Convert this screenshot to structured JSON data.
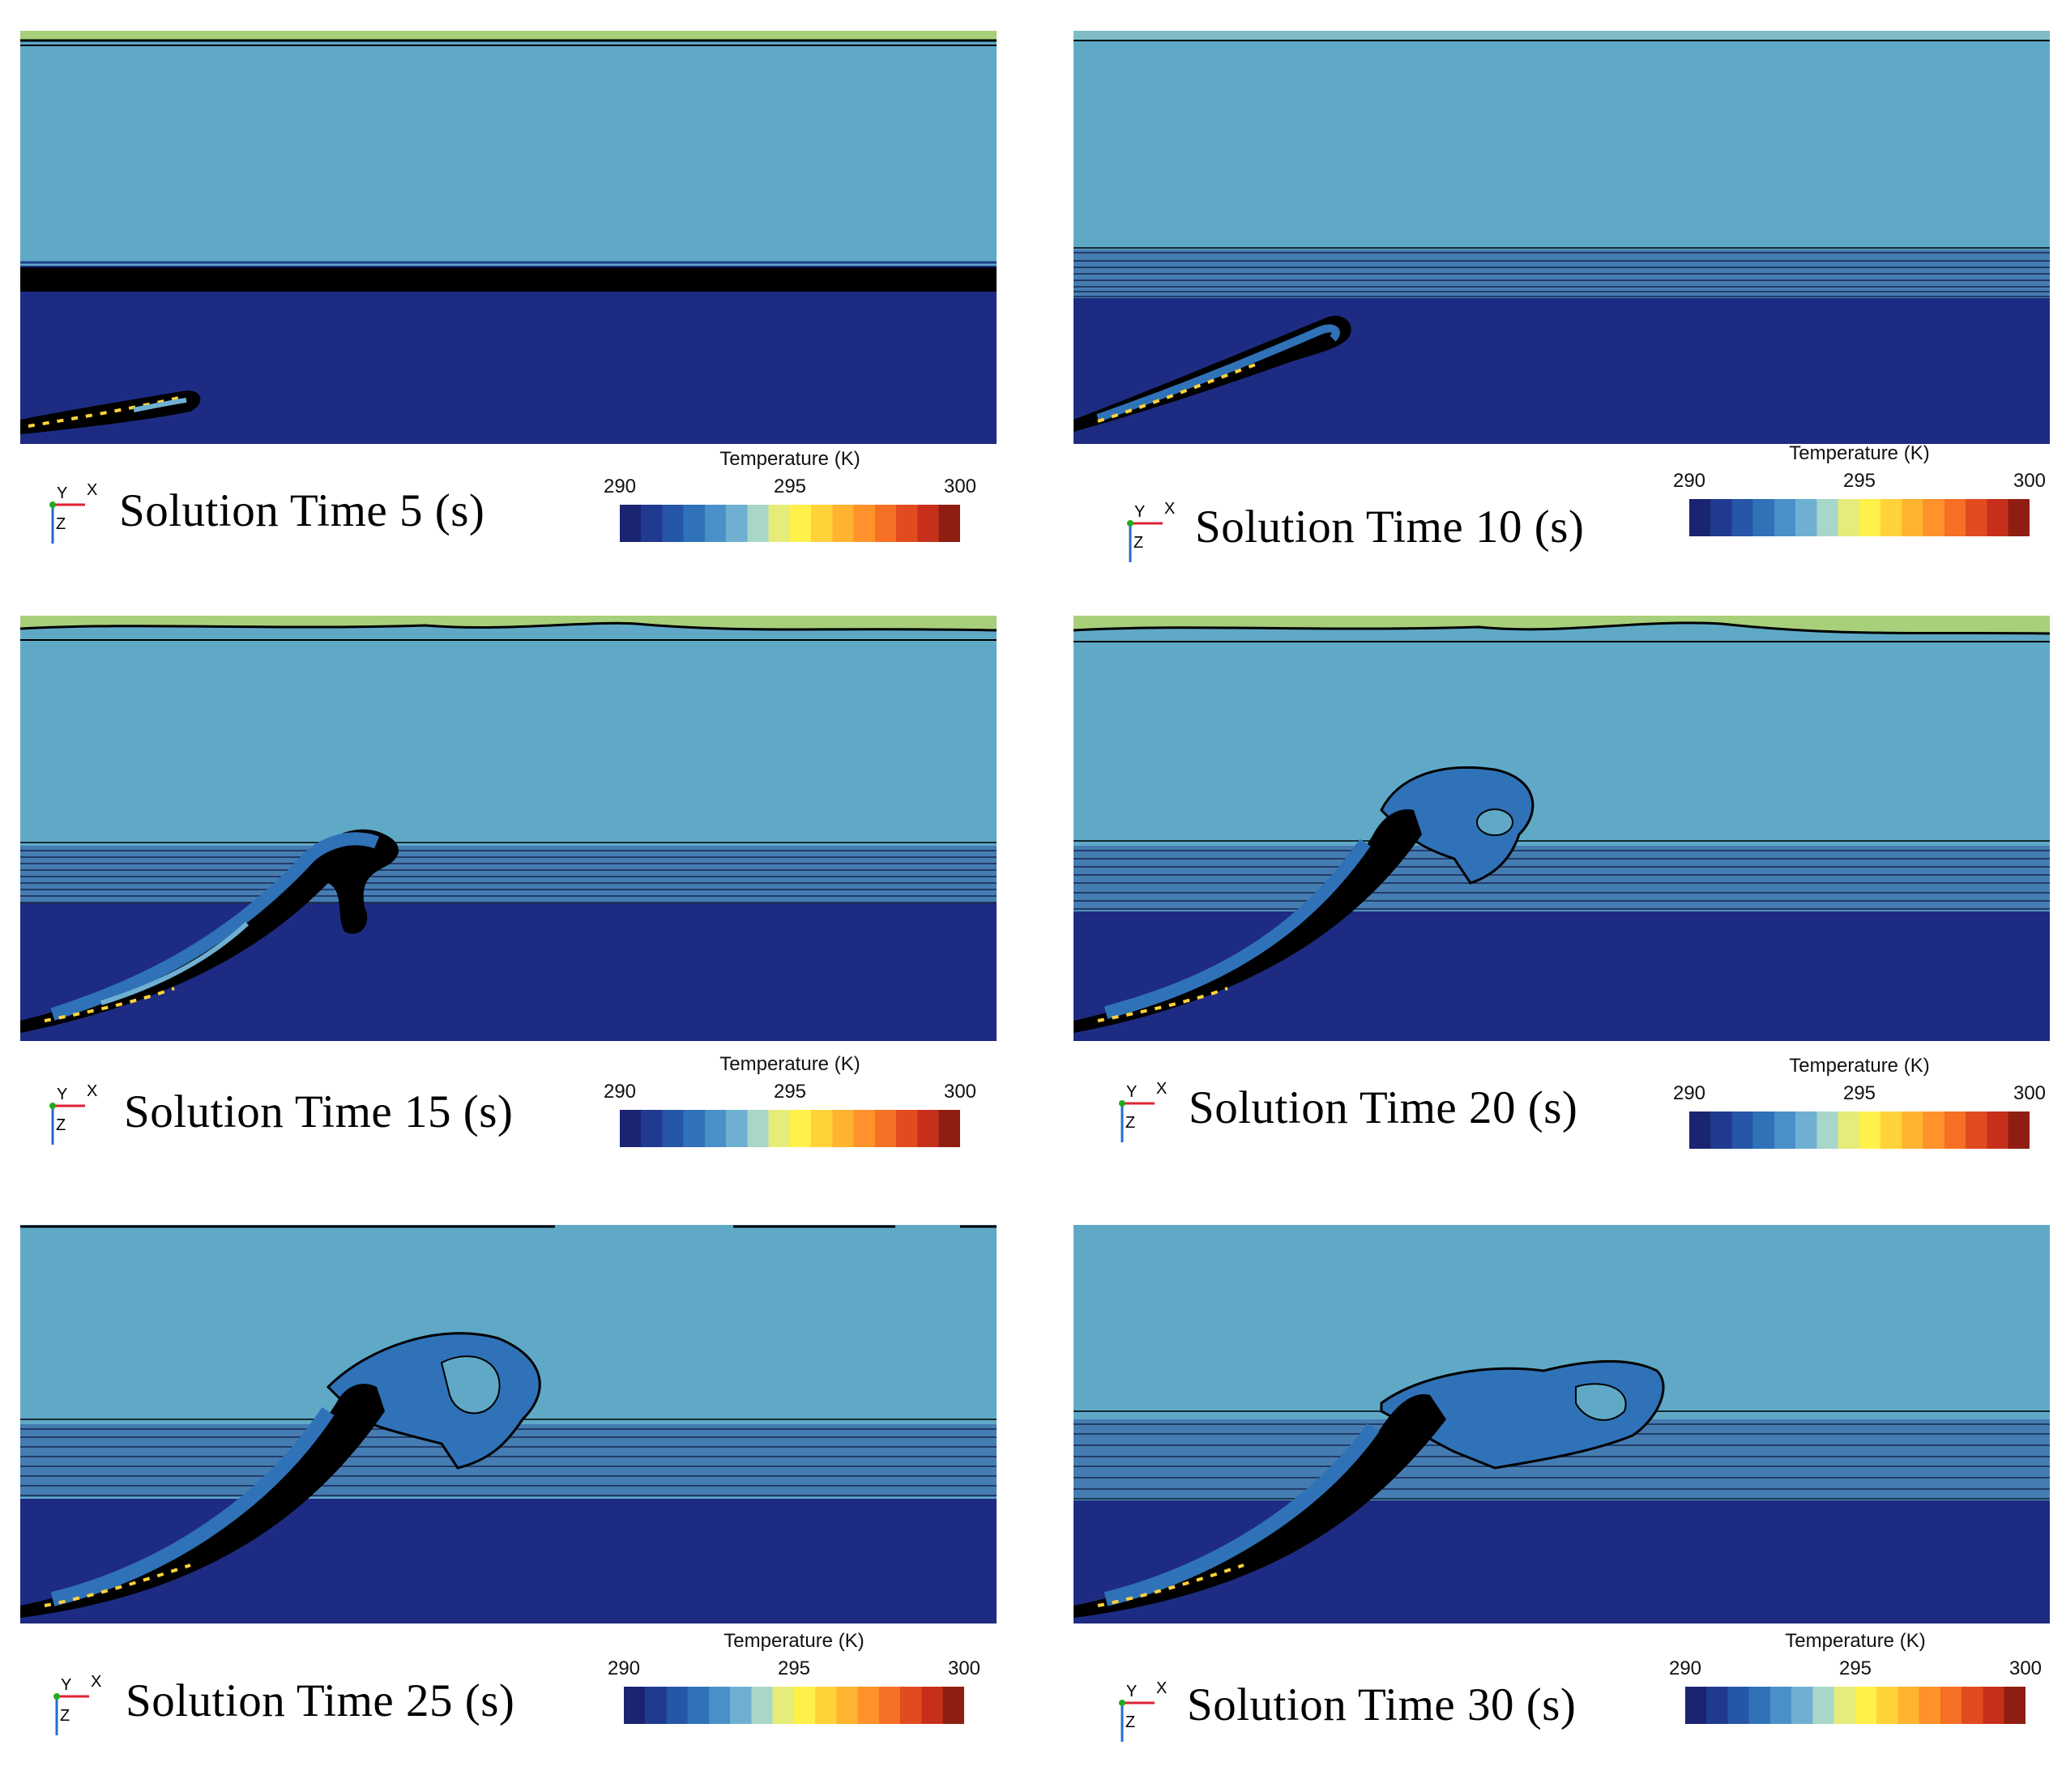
{
  "legend": {
    "title": "Temperature (K)",
    "min_label": "290",
    "mid_label": "295",
    "max_label": "300",
    "range_k": [
      290,
      300
    ],
    "colormap": [
      "#1a2470",
      "#1f3a8f",
      "#2556a8",
      "#2f72b8",
      "#4a90c8",
      "#6fb0d2",
      "#a8d6c9",
      "#e6ec7a",
      "#fff04a",
      "#ffd23a",
      "#ffb330",
      "#ff922a",
      "#f57024",
      "#e24a1f",
      "#c6301b",
      "#8f1e12"
    ]
  },
  "axes": {
    "y": "Y",
    "x": "X",
    "z": "Z"
  },
  "colors": {
    "background": "#ffffff",
    "warm_layer": "#5fa9c7",
    "cold_layer": "#1e2b82",
    "top_strip": "#a8cf7a",
    "contour": "#000000"
  },
  "panels": [
    {
      "caption": "Solution Time 5 (s)"
    },
    {
      "caption": "Solution Time 10 (s)"
    },
    {
      "caption": "Solution Time 15 (s)"
    },
    {
      "caption": "Solution Time 20 (s)"
    },
    {
      "caption": "Solution Time 25 (s)"
    },
    {
      "caption": "Solution Time 30 (s)"
    }
  ]
}
